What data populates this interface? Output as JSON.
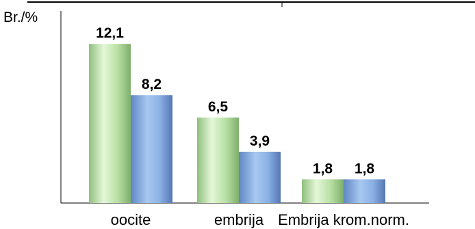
{
  "chart_data": {
    "type": "bar",
    "ylabel": "Br./%",
    "categories": [
      "oocite",
      "embrija",
      "Embrija krom.norm."
    ],
    "series": [
      {
        "values": [
          12.1,
          6.5,
          1.8
        ],
        "labels": [
          "12,1",
          "6,5",
          "1,8"
        ],
        "color": "green-gradient"
      },
      {
        "values": [
          8.2,
          3.9,
          1.8
        ],
        "labels": [
          "8,2",
          "3,9",
          "1,8"
        ],
        "color": "blue-gradient"
      }
    ],
    "ylim": [
      0,
      14.5
    ],
    "grid": false,
    "legend": "none"
  }
}
